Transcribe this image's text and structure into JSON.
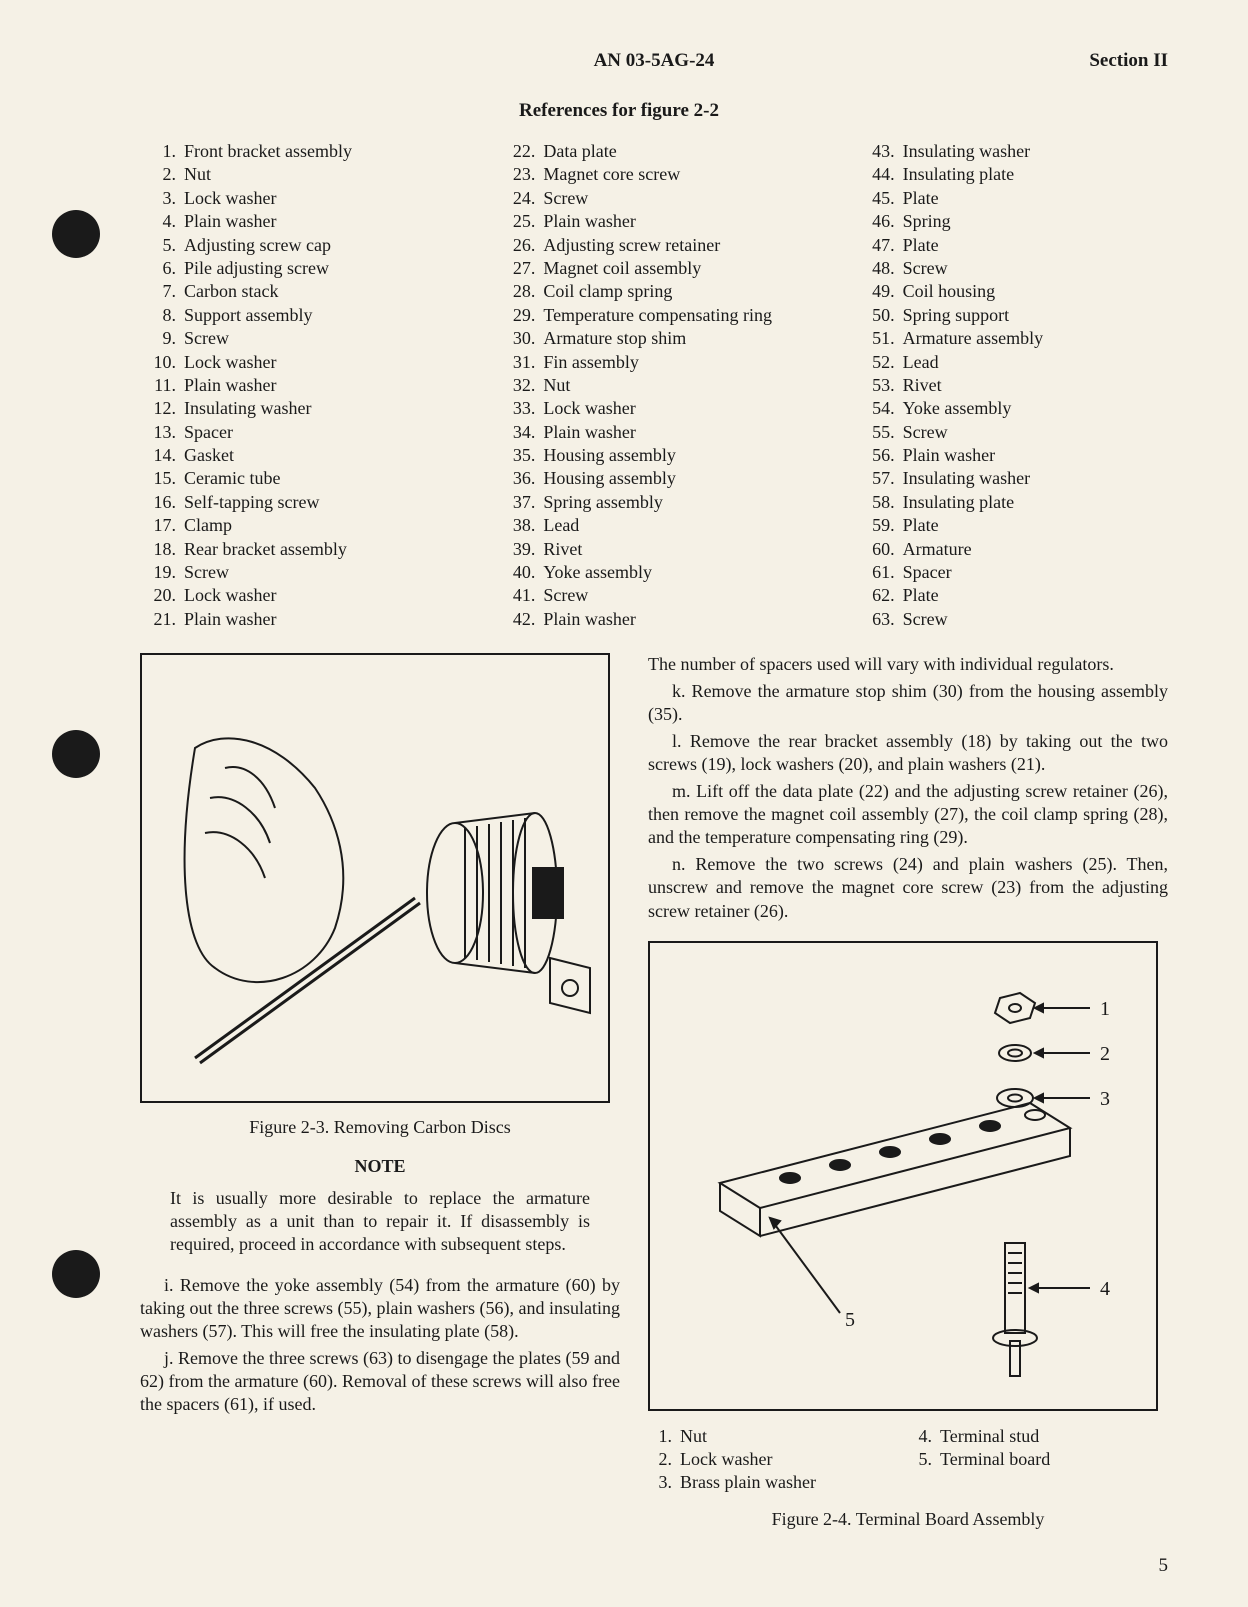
{
  "header": {
    "doc_number": "AN 03-5AG-24",
    "section": "Section II"
  },
  "references": {
    "title": "References for figure 2-2",
    "col1": [
      {
        "n": "1.",
        "t": "Front bracket assembly"
      },
      {
        "n": "2.",
        "t": "Nut"
      },
      {
        "n": "3.",
        "t": "Lock washer"
      },
      {
        "n": "4.",
        "t": "Plain washer"
      },
      {
        "n": "5.",
        "t": "Adjusting screw cap"
      },
      {
        "n": "6.",
        "t": "Pile adjusting screw"
      },
      {
        "n": "7.",
        "t": "Carbon stack"
      },
      {
        "n": "8.",
        "t": "Support assembly"
      },
      {
        "n": "9.",
        "t": "Screw"
      },
      {
        "n": "10.",
        "t": "Lock washer"
      },
      {
        "n": "11.",
        "t": "Plain washer"
      },
      {
        "n": "12.",
        "t": "Insulating washer"
      },
      {
        "n": "13.",
        "t": "Spacer"
      },
      {
        "n": "14.",
        "t": "Gasket"
      },
      {
        "n": "15.",
        "t": "Ceramic tube"
      },
      {
        "n": "16.",
        "t": "Self-tapping screw"
      },
      {
        "n": "17.",
        "t": "Clamp"
      },
      {
        "n": "18.",
        "t": "Rear bracket assembly"
      },
      {
        "n": "19.",
        "t": "Screw"
      },
      {
        "n": "20.",
        "t": "Lock washer"
      },
      {
        "n": "21.",
        "t": "Plain washer"
      }
    ],
    "col2": [
      {
        "n": "22.",
        "t": "Data plate"
      },
      {
        "n": "23.",
        "t": "Magnet core screw"
      },
      {
        "n": "24.",
        "t": "Screw"
      },
      {
        "n": "25.",
        "t": "Plain washer"
      },
      {
        "n": "26.",
        "t": "Adjusting screw retainer"
      },
      {
        "n": "27.",
        "t": "Magnet coil assembly"
      },
      {
        "n": "28.",
        "t": "Coil clamp spring"
      },
      {
        "n": "29.",
        "t": "Temperature compensating ring"
      },
      {
        "n": "30.",
        "t": "Armature stop shim"
      },
      {
        "n": "31.",
        "t": "Fin assembly"
      },
      {
        "n": "32.",
        "t": "Nut"
      },
      {
        "n": "33.",
        "t": "Lock washer"
      },
      {
        "n": "34.",
        "t": "Plain washer"
      },
      {
        "n": "35.",
        "t": "Housing assembly"
      },
      {
        "n": "36.",
        "t": "Housing assembly"
      },
      {
        "n": "37.",
        "t": "Spring assembly"
      },
      {
        "n": "38.",
        "t": "Lead"
      },
      {
        "n": "39.",
        "t": "Rivet"
      },
      {
        "n": "40.",
        "t": "Yoke assembly"
      },
      {
        "n": "41.",
        "t": "Screw"
      },
      {
        "n": "42.",
        "t": "Plain washer"
      }
    ],
    "col3": [
      {
        "n": "43.",
        "t": "Insulating washer"
      },
      {
        "n": "44.",
        "t": "Insulating plate"
      },
      {
        "n": "45.",
        "t": "Plate"
      },
      {
        "n": "46.",
        "t": "Spring"
      },
      {
        "n": "47.",
        "t": "Plate"
      },
      {
        "n": "48.",
        "t": "Screw"
      },
      {
        "n": "49.",
        "t": "Coil housing"
      },
      {
        "n": "50.",
        "t": "Spring support"
      },
      {
        "n": "51.",
        "t": "Armature assembly"
      },
      {
        "n": "52.",
        "t": "Lead"
      },
      {
        "n": "53.",
        "t": "Rivet"
      },
      {
        "n": "54.",
        "t": "Yoke assembly"
      },
      {
        "n": "55.",
        "t": "Screw"
      },
      {
        "n": "56.",
        "t": "Plain washer"
      },
      {
        "n": "57.",
        "t": "Insulating washer"
      },
      {
        "n": "58.",
        "t": "Insulating plate"
      },
      {
        "n": "59.",
        "t": "Plate"
      },
      {
        "n": "60.",
        "t": "Armature"
      },
      {
        "n": "61.",
        "t": "Spacer"
      },
      {
        "n": "62.",
        "t": "Plate"
      },
      {
        "n": "63.",
        "t": "Screw"
      }
    ]
  },
  "figure23": {
    "caption": "Figure 2-3.  Removing Carbon Discs"
  },
  "note": {
    "title": "NOTE",
    "body": "It is usually more desirable to replace the armature assembly as a unit than to repair it. If disassembly is required, proceed in accordance with subsequent steps."
  },
  "left_paras": {
    "i": "i. Remove the yoke assembly (54) from the armature (60) by taking out the three screws (55), plain washers (56), and insulating washers (57). This will free the insulating plate (58).",
    "j": "j. Remove the three screws (63) to disengage the plates (59 and 62) from the armature (60). Removal of these screws will also free the spacers (61), if used."
  },
  "right_paras": {
    "intro": "The number of spacers used will vary with individual regulators.",
    "k": "k. Remove the armature stop shim (30) from the housing assembly (35).",
    "l": "l. Remove the rear bracket assembly (18) by taking out the two screws (19), lock washers (20), and plain washers (21).",
    "m": "m. Lift off the data plate (22) and the adjusting screw retainer (26), then remove the magnet coil assembly (27), the coil clamp spring (28), and the temperature compensating ring (29).",
    "n": "n. Remove the two screws (24) and plain washers (25). Then, unscrew and remove the magnet core screw (23) from the adjusting screw retainer (26)."
  },
  "figure24": {
    "caption": "Figure 2-4.  Terminal Board Assembly",
    "labels": {
      "l1": "1",
      "l2": "2",
      "l3": "3",
      "l4": "4",
      "l5": "5"
    },
    "legend_left": [
      {
        "n": "1.",
        "t": "Nut"
      },
      {
        "n": "2.",
        "t": "Lock washer"
      },
      {
        "n": "3.",
        "t": "Brass plain washer"
      }
    ],
    "legend_right": [
      {
        "n": "4.",
        "t": "Terminal stud"
      },
      {
        "n": "5.",
        "t": "Terminal board"
      }
    ]
  },
  "page_number": "5",
  "colors": {
    "paper": "#f5f1e6",
    "ink": "#1a1a1a"
  }
}
